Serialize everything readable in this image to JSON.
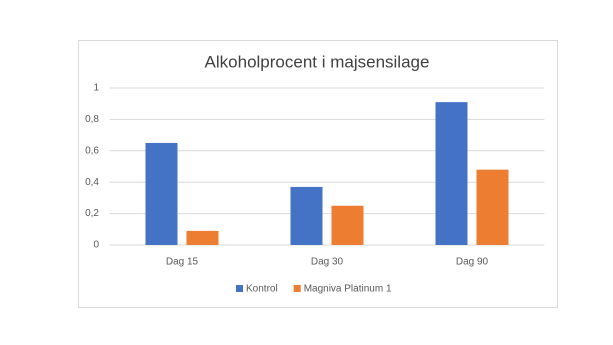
{
  "chart_data": {
    "type": "bar",
    "title": "Alkoholprocent i majsensilage",
    "categories": [
      "Dag 15",
      "Dag 30",
      "Dag 90"
    ],
    "series": [
      {
        "name": "Kontrol",
        "color": "#4472c4",
        "values": [
          0.65,
          0.37,
          0.91
        ]
      },
      {
        "name": "Magniva Platinum 1",
        "color": "#ed7d31",
        "values": [
          0.09,
          0.25,
          0.48
        ]
      }
    ],
    "ylim": [
      0,
      1
    ],
    "yticks": [
      0,
      {
        "value": 0.2,
        "label": "0,2"
      },
      {
        "value": 0.4,
        "label": "0,4"
      },
      {
        "value": 0.6,
        "label": "0,6"
      },
      {
        "value": 0.8,
        "label": "0,8"
      },
      1
    ],
    "grid": true,
    "legend": "bottom"
  }
}
